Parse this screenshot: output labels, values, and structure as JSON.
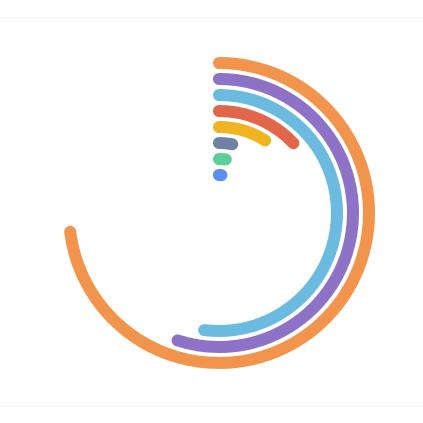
{
  "chart_data": {
    "type": "radial-bar",
    "max": 100,
    "start_angle_deg": 0,
    "series": [
      {
        "value": 73,
        "color": "#f2944c"
      },
      {
        "value": 55,
        "color": "#8e72c8"
      },
      {
        "value": 52,
        "color": "#6bbbe0"
      },
      {
        "value": 13,
        "color": "#e2674a"
      },
      {
        "value": 9,
        "color": "#f0b321"
      },
      {
        "value": 3,
        "color": "#6f81a4"
      },
      {
        "value": 2,
        "color": "#5ccf98"
      },
      {
        "value": 1,
        "color": "#5b8ef0"
      }
    ]
  }
}
